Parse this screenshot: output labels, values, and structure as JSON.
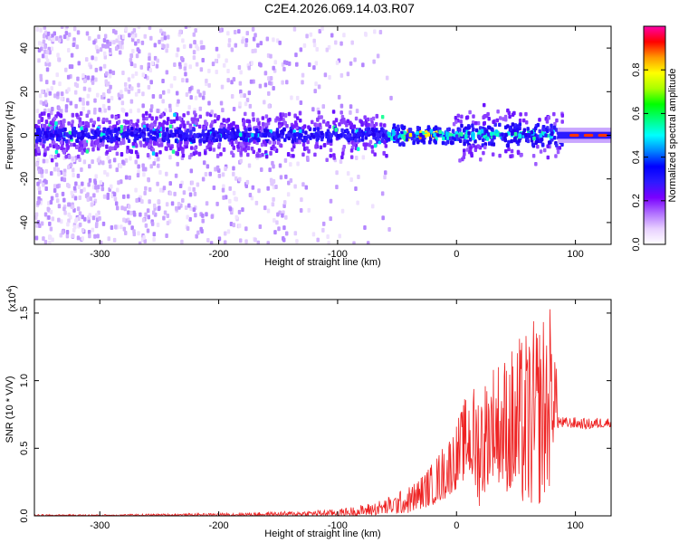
{
  "title": "C2E4.2026.069.14.03.R07",
  "chart_data": [
    {
      "type": "heatmap",
      "xlabel": "Height of straight line (km)",
      "ylabel": "Frequency (Hz)",
      "xlim": [
        -355,
        130
      ],
      "ylim": [
        -50,
        50
      ],
      "x_ticks": [
        -300,
        -200,
        -100,
        0,
        100
      ],
      "x_tick_labels": [
        "-300",
        "-200",
        "-100",
        "0",
        "100"
      ],
      "y_ticks": [
        -40,
        -20,
        0,
        20,
        40
      ],
      "y_tick_labels": [
        "-40",
        "-20",
        "0",
        "20",
        "40"
      ],
      "colorbar": {
        "label": "Normalized spectral amplitude",
        "range": [
          0,
          1
        ],
        "ticks": [
          0.0,
          0.2,
          0.4,
          0.6,
          0.8
        ],
        "tick_labels": [
          "0.0",
          "0.2",
          "0.4",
          "0.6",
          "0.8"
        ],
        "colormap": [
          "#ffffff",
          "#e8d0ff",
          "#b070ff",
          "#7a00ff",
          "#2d1aff",
          "#0000ff",
          "#0088ff",
          "#00ffff",
          "#00ff80",
          "#00ff00",
          "#aaff00",
          "#ffff00",
          "#ff9900",
          "#ff0000",
          "#ff00aa"
        ]
      },
      "grid": false
    },
    {
      "type": "line",
      "xlabel": "Height of straight line (km)",
      "ylabel": "SNR (10 * V/V)",
      "y_multiplier_label": "(x10",
      "y_multiplier_exp": "4",
      "y_multiplier_close": ")",
      "xlim": [
        -355,
        130
      ],
      "ylim": [
        0,
        1.6
      ],
      "x_ticks": [
        -300,
        -200,
        -100,
        0,
        100
      ],
      "x_tick_labels": [
        "-300",
        "-200",
        "-100",
        "0",
        "100"
      ],
      "y_ticks": [
        0.0,
        0.5,
        1.0,
        1.5
      ],
      "y_tick_labels": [
        "0.0",
        "0.5",
        "1.0",
        "1.5"
      ],
      "line_color": "#ee2222",
      "envelope": {
        "x": [
          -355,
          -300,
          -200,
          -150,
          -100,
          -80,
          -60,
          -40,
          -30,
          -20,
          -10,
          0,
          10,
          18,
          20,
          25,
          30,
          40,
          50,
          60,
          70,
          78,
          82,
          86,
          90,
          100,
          110,
          120,
          130
        ],
        "upper": [
          0.01,
          0.01,
          0.02,
          0.03,
          0.05,
          0.08,
          0.13,
          0.22,
          0.3,
          0.4,
          0.55,
          0.7,
          0.95,
          1.0,
          1.1,
          1.05,
          1.15,
          1.2,
          1.3,
          1.4,
          1.5,
          1.6,
          1.45,
          0.75,
          0.73,
          0.73,
          0.72,
          0.73,
          0.73
        ],
        "lower": [
          0.0,
          0.0,
          0.0,
          0.0,
          0.0,
          0.0,
          0.01,
          0.02,
          0.05,
          0.08,
          0.12,
          0.2,
          0.3,
          0.1,
          0.05,
          0.2,
          0.3,
          0.2,
          0.1,
          0.05,
          0.08,
          0.2,
          0.6,
          0.65,
          0.65,
          0.65,
          0.64,
          0.65,
          0.66
        ]
      },
      "grid": false
    }
  ]
}
